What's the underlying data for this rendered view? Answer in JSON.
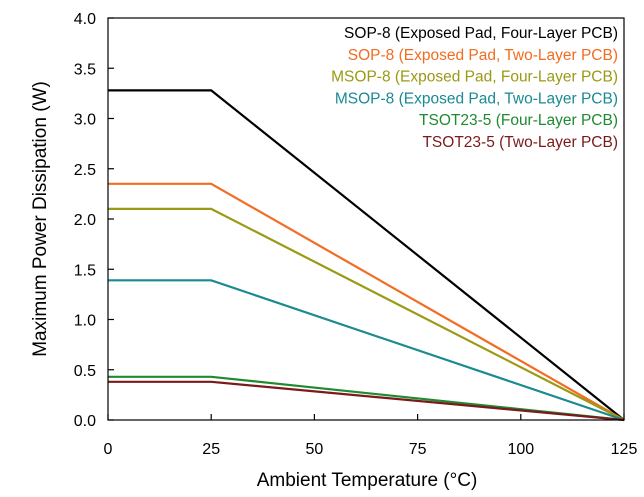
{
  "chart_data": {
    "type": "line",
    "xlabel": "Ambient Temperature (°C)",
    "ylabel": "Maximum Power Dissipation (W)",
    "xlim": [
      0,
      125
    ],
    "ylim": [
      0,
      4.0
    ],
    "x_ticks": [
      0,
      25,
      50,
      75,
      100,
      125
    ],
    "x_tick_labels": [
      "0",
      "25",
      "50",
      "75",
      "100",
      "125"
    ],
    "y_ticks": [
      0,
      0.5,
      1.0,
      1.5,
      2.0,
      2.5,
      3.0,
      3.5,
      4.0
    ],
    "y_tick_labels": [
      "0.0",
      "0.5",
      "1.0",
      "1.5",
      "2.0",
      "2.5",
      "3.0",
      "3.5",
      "4.0"
    ],
    "grid": false,
    "legend_position": "top-right",
    "series": [
      {
        "name": "SOP-8 (Exposed Pad, Four-Layer PCB)",
        "color": "#000000",
        "x": [
          0,
          25,
          125
        ],
        "y": [
          3.28,
          3.28,
          0
        ]
      },
      {
        "name": "SOP-8 (Exposed Pad, Two-Layer PCB)",
        "color": "#f26c21",
        "x": [
          0,
          25,
          125
        ],
        "y": [
          2.35,
          2.35,
          0
        ]
      },
      {
        "name": "MSOP-8 (Exposed Pad, Four-Layer PCB)",
        "color": "#9a9a14",
        "x": [
          0,
          25,
          125
        ],
        "y": [
          2.1,
          2.1,
          0
        ]
      },
      {
        "name": "MSOP-8 (Exposed Pad, Two-Layer PCB)",
        "color": "#1a8a93",
        "x": [
          0,
          25,
          125
        ],
        "y": [
          1.39,
          1.39,
          0
        ]
      },
      {
        "name": "TSOT23-5 (Four-Layer PCB)",
        "color": "#1f8a32",
        "x": [
          0,
          25,
          125
        ],
        "y": [
          0.43,
          0.43,
          0
        ]
      },
      {
        "name": "TSOT23-5 (Two-Layer PCB)",
        "color": "#7a1a1a",
        "x": [
          0,
          25,
          125
        ],
        "y": [
          0.38,
          0.38,
          0
        ]
      }
    ]
  }
}
